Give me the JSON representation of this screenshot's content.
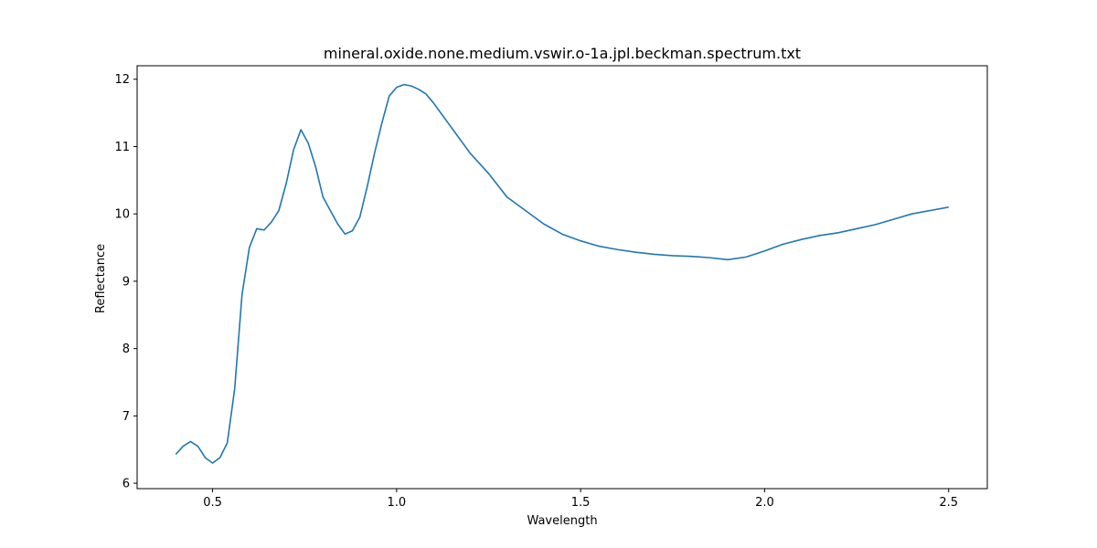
{
  "chart_data": {
    "type": "line",
    "title": "mineral.oxide.none.medium.vswir.o-1a.jpl.beckman.spectrum.txt",
    "xlabel": "Wavelength",
    "ylabel": "Reflectance",
    "xlim": [
      0.295,
      2.605
    ],
    "ylim": [
      5.92,
      12.2
    ],
    "xticks": [
      0.5,
      1.0,
      1.5,
      2.0,
      2.5
    ],
    "xtick_labels": [
      "0.5",
      "1.0",
      "1.5",
      "2.0",
      "2.5"
    ],
    "yticks": [
      6,
      7,
      8,
      9,
      10,
      11,
      12
    ],
    "ytick_labels": [
      "6",
      "7",
      "8",
      "9",
      "10",
      "11",
      "12"
    ],
    "grid": false,
    "line_color": "#1f77b4",
    "series": [
      {
        "x": [
          0.4,
          0.42,
          0.44,
          0.46,
          0.48,
          0.5,
          0.52,
          0.54,
          0.56,
          0.58,
          0.6,
          0.62,
          0.64,
          0.66,
          0.68,
          0.7,
          0.72,
          0.74,
          0.76,
          0.78,
          0.8,
          0.82,
          0.84,
          0.86,
          0.88,
          0.9,
          0.92,
          0.94,
          0.96,
          0.98,
          1.0,
          1.02,
          1.04,
          1.06,
          1.08,
          1.1,
          1.12,
          1.14,
          1.16,
          1.18,
          1.2,
          1.25,
          1.3,
          1.35,
          1.4,
          1.45,
          1.5,
          1.55,
          1.6,
          1.65,
          1.7,
          1.75,
          1.8,
          1.85,
          1.9,
          1.95,
          2.0,
          2.05,
          2.1,
          2.15,
          2.2,
          2.25,
          2.3,
          2.35,
          2.4,
          2.45,
          2.5
        ],
        "y": [
          6.43,
          6.55,
          6.62,
          6.55,
          6.38,
          6.3,
          6.38,
          6.6,
          7.4,
          8.8,
          9.5,
          9.78,
          9.76,
          9.88,
          10.05,
          10.45,
          10.95,
          11.25,
          11.05,
          10.7,
          10.25,
          10.05,
          9.85,
          9.7,
          9.75,
          9.95,
          10.4,
          10.9,
          11.35,
          11.75,
          11.88,
          11.92,
          11.9,
          11.85,
          11.78,
          11.65,
          11.5,
          11.35,
          11.2,
          11.05,
          10.9,
          10.6,
          10.25,
          10.05,
          9.85,
          9.7,
          9.6,
          9.52,
          9.47,
          9.43,
          9.4,
          9.38,
          9.37,
          9.35,
          9.32,
          9.36,
          9.45,
          9.55,
          9.62,
          9.68,
          9.72,
          9.78,
          9.84,
          9.92,
          10.0,
          10.05,
          10.1
        ]
      }
    ]
  }
}
